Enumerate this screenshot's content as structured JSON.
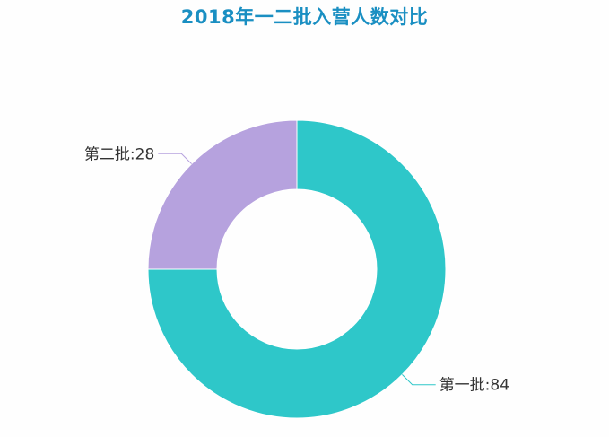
{
  "chart_data": {
    "type": "pie",
    "title": "2018年一二批入营人数对比",
    "donut": true,
    "categories": [
      "第一批",
      "第二批"
    ],
    "values": [
      84,
      28
    ],
    "labels": [
      "第一批:84",
      "第二批:28"
    ],
    "colors": [
      "#2ec7c9",
      "#b6a2de"
    ],
    "title_color": "#1a8fc2",
    "legend": "none"
  }
}
